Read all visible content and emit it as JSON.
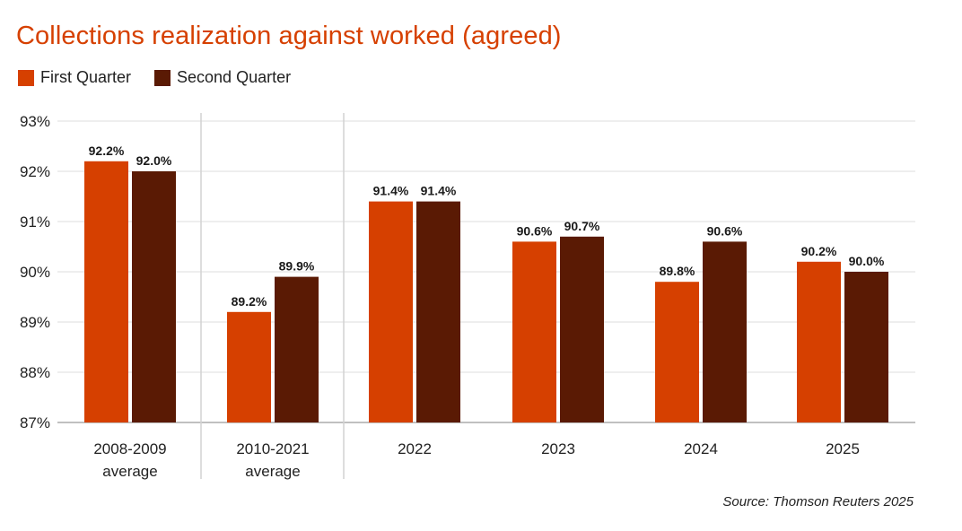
{
  "title": "Collections realization against worked (agreed)",
  "source": "Source: Thomson Reuters 2025",
  "legend": [
    {
      "label": "First Quarter",
      "color": "#d64000"
    },
    {
      "label": "Second Quarter",
      "color": "#5a1a04"
    }
  ],
  "chart_data": {
    "type": "bar",
    "title": "Collections realization against worked (agreed)",
    "xlabel": "",
    "ylabel": "",
    "ylim": [
      87,
      93
    ],
    "yticks": [
      93,
      92,
      91,
      90,
      89,
      88,
      87
    ],
    "ytick_labels": [
      "93%",
      "92%",
      "91%",
      "90%",
      "89%",
      "88%",
      "87%"
    ],
    "categories": [
      [
        "2008-2009",
        "average"
      ],
      [
        "2010-2021",
        "average"
      ],
      [
        "2022"
      ],
      [
        "2023"
      ],
      [
        "2024"
      ],
      [
        "2025"
      ]
    ],
    "series": [
      {
        "name": "First Quarter",
        "color": "#d64000",
        "values": [
          92.2,
          89.2,
          91.4,
          90.6,
          89.8,
          90.2
        ],
        "labels": [
          "92.2%",
          "89.2%",
          "91.4%",
          "90.6%",
          "89.8%",
          "90.2%"
        ]
      },
      {
        "name": "Second Quarter",
        "color": "#5a1a04",
        "values": [
          92.0,
          89.9,
          91.4,
          90.7,
          90.6,
          90.0
        ],
        "labels": [
          "92.0%",
          "89.9%",
          "91.4%",
          "90.7%",
          "90.6%",
          "90.0%"
        ]
      }
    ],
    "grid": true,
    "legend_position": "top-left"
  }
}
